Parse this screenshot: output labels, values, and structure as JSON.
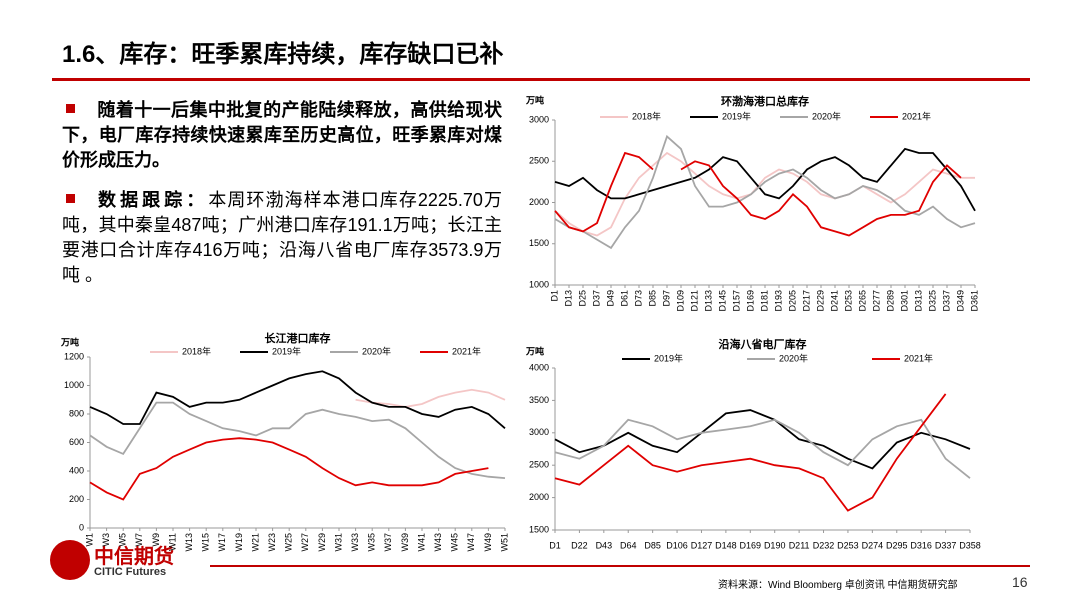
{
  "slide": {
    "title": "1.6、库存：旺季累库持续，库存缺口已补",
    "bullets": [
      "随着十一后集中批复的产能陆续释放，高供给现状下，电厂库存持续快速累库至历史高位，旺季累库对煤价形成压力。",
      {
        "label": "数据跟踪：",
        "text": "本周环渤海样本港口库存2225.70万吨，其中秦皇487吨；广州港口库存191.1万吨；长江主要港口合计库存416万吨；沿海八省电厂库存3573.9万吨 。"
      }
    ],
    "logo": "中信期货",
    "logo_en": "CITIC Futures",
    "source": "资料来源：Wind Bloomberg 卓创资讯 中信期货研究部",
    "page": "16"
  },
  "chart_data": [
    {
      "type": "line",
      "title": "环渤海港口总库存",
      "y_unit": "万吨",
      "categories": [
        "D1",
        "D13",
        "D25",
        "D37",
        "D49",
        "D61",
        "D73",
        "D85",
        "D97",
        "D109",
        "D121",
        "D133",
        "D145",
        "D157",
        "D169",
        "D181",
        "D193",
        "D205",
        "D217",
        "D229",
        "D241",
        "D253",
        "D265",
        "D277",
        "D289",
        "D301",
        "D313",
        "D325",
        "D337",
        "D349",
        "D361"
      ],
      "ylim": [
        1000,
        3000
      ],
      "yticks": [
        1000,
        1500,
        2000,
        2500,
        3000
      ],
      "series": [
        {
          "name": "2018年",
          "color": "#f4c6c6",
          "values": [
            1900,
            1750,
            1650,
            1600,
            1700,
            2050,
            2300,
            2450,
            2600,
            2500,
            2350,
            2200,
            2100,
            2050,
            2100,
            2300,
            2400,
            2350,
            2250,
            2100,
            2050,
            2100,
            2200,
            2100,
            2000,
            2100,
            2250,
            2400,
            2350,
            2300,
            2300
          ]
        },
        {
          "name": "2019年",
          "color": "#000000",
          "values": [
            2250,
            2200,
            2300,
            2150,
            2050,
            2050,
            2100,
            2150,
            2200,
            2250,
            2300,
            2400,
            2550,
            2500,
            2300,
            2100,
            2050,
            2200,
            2400,
            2500,
            2550,
            2450,
            2300,
            2250,
            2450,
            2650,
            2600,
            2600,
            2400,
            2200,
            1900
          ]
        },
        {
          "name": "2020年",
          "color": "#a6a6a6",
          "values": [
            1800,
            1700,
            1650,
            1550,
            1450,
            1700,
            1900,
            2300,
            2800,
            2650,
            2200,
            1950,
            1950,
            2000,
            2100,
            2250,
            2350,
            2400,
            2300,
            2150,
            2050,
            2100,
            2200,
            2150,
            2050,
            1900,
            1850,
            1950,
            1800,
            1700,
            1750
          ]
        },
        {
          "name": "2021年",
          "color": "#e00000",
          "values": [
            1900,
            1700,
            1650,
            1750,
            2200,
            2600,
            2550,
            2400,
            null,
            2400,
            2500,
            2450,
            2200,
            2050,
            1850,
            1800,
            1900,
            2100,
            1950,
            1700,
            1650,
            1600,
            1700,
            1800,
            1850,
            1850,
            1900,
            2250,
            2450,
            2300,
            null
          ]
        }
      ]
    },
    {
      "type": "line",
      "title": "长江港口库存",
      "y_unit": "万吨",
      "categories": [
        "W1",
        "W3",
        "W5",
        "W7",
        "W9",
        "W11",
        "W13",
        "W15",
        "W17",
        "W19",
        "W21",
        "W23",
        "W25",
        "W27",
        "W29",
        "W31",
        "W33",
        "W35",
        "W37",
        "W39",
        "W41",
        "W43",
        "W45",
        "W47",
        "W49",
        "W51"
      ],
      "ylim": [
        0,
        1200
      ],
      "yticks": [
        0,
        200,
        400,
        600,
        800,
        1000,
        1200
      ],
      "series": [
        {
          "name": "2018年",
          "color": "#f4c6c6",
          "values": [
            null,
            null,
            null,
            null,
            null,
            null,
            null,
            null,
            null,
            null,
            null,
            null,
            null,
            null,
            null,
            null,
            900,
            880,
            870,
            850,
            870,
            920,
            950,
            970,
            950,
            900
          ]
        },
        {
          "name": "2019年",
          "color": "#000000",
          "values": [
            850,
            800,
            730,
            730,
            950,
            920,
            850,
            880,
            880,
            900,
            950,
            1000,
            1050,
            1080,
            1100,
            1050,
            950,
            880,
            850,
            850,
            800,
            780,
            830,
            850,
            800,
            700
          ]
        },
        {
          "name": "2020年",
          "color": "#a6a6a6",
          "values": [
            650,
            570,
            520,
            700,
            880,
            880,
            800,
            750,
            700,
            680,
            650,
            700,
            700,
            800,
            830,
            800,
            780,
            750,
            760,
            700,
            600,
            500,
            420,
            380,
            360,
            350
          ]
        },
        {
          "name": "2021年",
          "color": "#e00000",
          "values": [
            320,
            250,
            200,
            380,
            420,
            500,
            550,
            600,
            620,
            630,
            620,
            600,
            550,
            500,
            420,
            350,
            300,
            320,
            300,
            300,
            300,
            320,
            380,
            400,
            420,
            null
          ]
        }
      ]
    },
    {
      "type": "line",
      "title": "沿海八省电厂库存",
      "y_unit": "万吨",
      "categories": [
        "D1",
        "D22",
        "D43",
        "D64",
        "D85",
        "D106",
        "D127",
        "D148",
        "D169",
        "D190",
        "D211",
        "D232",
        "D253",
        "D274",
        "D295",
        "D316",
        "D337",
        "D358"
      ],
      "ylim": [
        1500,
        4000
      ],
      "yticks": [
        1500,
        2000,
        2500,
        3000,
        3500,
        4000
      ],
      "series": [
        {
          "name": "2019年",
          "color": "#000000",
          "values": [
            2900,
            2700,
            2800,
            3000,
            2800,
            2700,
            3000,
            3300,
            3350,
            3200,
            2900,
            2800,
            2600,
            2450,
            2850,
            3000,
            2900,
            2750
          ]
        },
        {
          "name": "2020年",
          "color": "#a6a6a6",
          "values": [
            2700,
            2600,
            2800,
            3200,
            3100,
            2900,
            3000,
            3050,
            3100,
            3200,
            3000,
            2700,
            2500,
            2900,
            3100,
            3200,
            2600,
            2300
          ]
        },
        {
          "name": "2021年",
          "color": "#e00000",
          "values": [
            2300,
            2200,
            2500,
            2800,
            2500,
            2400,
            2500,
            2550,
            2600,
            2500,
            2450,
            2300,
            1800,
            2000,
            2600,
            3100,
            3600,
            null
          ]
        }
      ]
    }
  ]
}
